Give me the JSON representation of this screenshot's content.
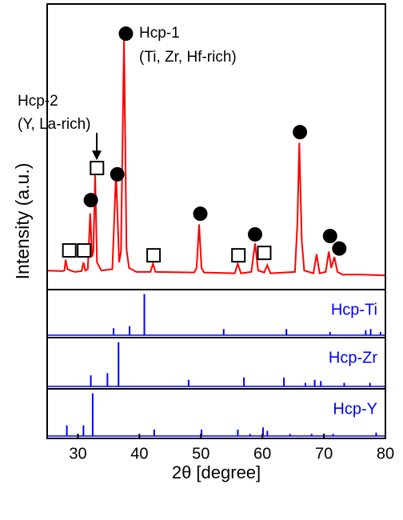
{
  "chart_data": [
    {
      "type": "line",
      "y_label": "Intensity (a.u.)",
      "color": "#ff0000",
      "xlim": [
        25,
        80
      ],
      "ylim": [
        0,
        105
      ],
      "x": [
        25,
        27.5,
        27.8,
        28.0,
        28.3,
        28.8,
        29.5,
        30.6,
        30.9,
        31.2,
        31.6,
        32.0,
        32.3,
        32.5,
        32.8,
        33.1,
        33.8,
        35.6,
        36.2,
        36.7,
        37.0,
        37.5,
        37.9,
        38.3,
        39.5,
        41.8,
        42.2,
        42.6,
        48.9,
        49.3,
        49.7,
        50.1,
        50.5,
        55.5,
        56.0,
        56.5,
        58.2,
        58.8,
        59.3,
        60.3,
        60.8,
        61.3,
        65.3,
        65.7,
        66.0,
        66.4,
        66.8,
        68.3,
        68.8,
        69.3,
        70.3,
        70.8,
        71.2,
        71.7,
        72.2,
        73,
        76,
        80
      ],
      "values": [
        7,
        6.8,
        7,
        11,
        7.5,
        7,
        6.5,
        6.8,
        10,
        7,
        7.5,
        28,
        12,
        14,
        42,
        10,
        7,
        7.5,
        43,
        10,
        14,
        92,
        15,
        8,
        6.5,
        6.5,
        9.5,
        6.5,
        6.3,
        8,
        24,
        8,
        6.3,
        6,
        9.5,
        6,
        6.5,
        17,
        7,
        6.3,
        9,
        6,
        6.5,
        25,
        54,
        18,
        7,
        6,
        13,
        6,
        6.5,
        14,
        8,
        12,
        6.5,
        5.5,
        5.5,
        5.2
      ],
      "markers": [
        {
          "name": "Hcp-1",
          "note": "(Ti, Zr, Hf-rich)",
          "symbol": "circle",
          "x": [
            37.8,
            36.4,
            32.1,
            49.9,
            58.8,
            66.1,
            71.0,
            72.5
          ],
          "y": [
            94.1,
            42.4,
            32.9,
            27.9,
            20.3,
            57.9,
            19.7,
            15.1
          ]
        },
        {
          "name": "Hcp-2",
          "note": "(Y, La-rich)",
          "symbol": "square",
          "x": [
            33.1,
            28.6,
            31.0,
            42.3,
            56.1,
            60.3
          ],
          "y": [
            44.7,
            14.4,
            14.4,
            12.6,
            12.6,
            13.5
          ]
        }
      ]
    },
    {
      "type": "stem",
      "label": "Hcp-Ti",
      "color": "#0000ff",
      "xlim": [
        25,
        80
      ],
      "ylim": [
        0,
        105
      ],
      "x": [
        35.8,
        38.4,
        40.8,
        53.7,
        63.9,
        71.0,
        76.8,
        77.6,
        79.2
      ],
      "values": [
        17,
        22,
        100,
        15,
        15,
        8,
        12,
        15,
        8
      ]
    },
    {
      "type": "stem",
      "label": "Hcp-Zr",
      "color": "#0000ff",
      "xlim": [
        25,
        80
      ],
      "ylim": [
        0,
        105
      ],
      "x": [
        32.1,
        34.8,
        36.6,
        48.0,
        57.0,
        63.5,
        67.0,
        68.5,
        69.5,
        73.3,
        77.5
      ],
      "values": [
        25,
        30,
        100,
        15,
        20,
        20,
        8,
        15,
        12,
        8,
        8
      ]
    },
    {
      "type": "stem",
      "label": "Hcp-Y",
      "color": "#0000ff",
      "xlim": [
        25,
        80
      ],
      "ylim": [
        0,
        105
      ],
      "x": [
        28.2,
        30.9,
        32.4,
        42.4,
        50.1,
        56.0,
        58.0,
        60.1,
        60.8,
        64.5,
        68.0,
        71.5,
        78.5
      ],
      "values": [
        25,
        25,
        100,
        15,
        15,
        15,
        5,
        20,
        12,
        5,
        5,
        5,
        8
      ],
      "x_label": "2θ [degree]",
      "xticks": [
        30,
        40,
        50,
        60,
        70,
        80
      ]
    }
  ]
}
